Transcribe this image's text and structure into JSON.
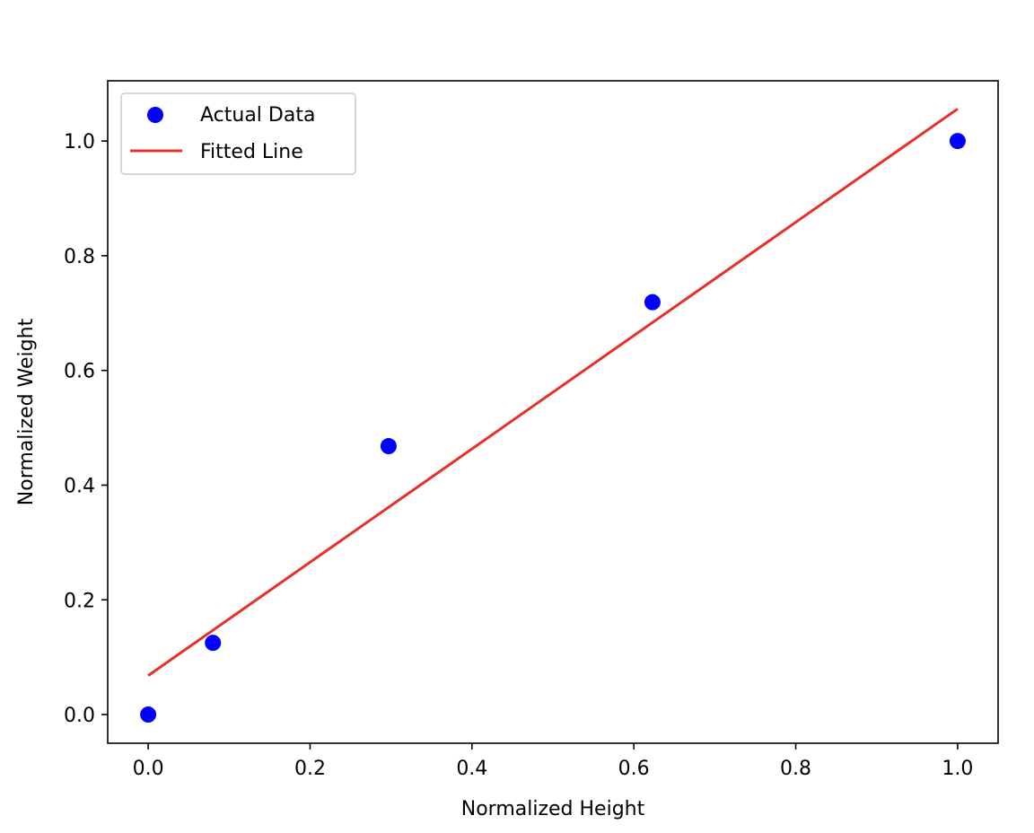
{
  "chart_data": {
    "type": "scatter",
    "xlabel": "Normalized Height",
    "ylabel": "Normalized Weight",
    "xlim": [
      -0.05,
      1.05
    ],
    "ylim": [
      -0.05,
      1.105
    ],
    "xticks": [
      0.0,
      0.2,
      0.4,
      0.6,
      0.8,
      1.0
    ],
    "xtick_labels": [
      "0.0",
      "0.2",
      "0.4",
      "0.6",
      "0.8",
      "1.0"
    ],
    "yticks": [
      0.0,
      0.2,
      0.4,
      0.6,
      0.8,
      1.0
    ],
    "ytick_labels": [
      "0.0",
      "0.2",
      "0.4",
      "0.6",
      "0.8",
      "1.0"
    ],
    "grid": false,
    "legend_position": "top-left",
    "series": [
      {
        "name": "Actual Data",
        "kind": "scatter",
        "color": "#0000ff",
        "points": [
          {
            "x": 0.0,
            "y": 0.0
          },
          {
            "x": 0.08,
            "y": 0.125
          },
          {
            "x": 0.297,
            "y": 0.468
          },
          {
            "x": 0.623,
            "y": 0.719
          },
          {
            "x": 1.0,
            "y": 1.0
          }
        ]
      },
      {
        "name": "Fitted Line",
        "kind": "line",
        "color": "#e8302a",
        "points": [
          {
            "x": 0.0,
            "y": 0.068
          },
          {
            "x": 1.0,
            "y": 1.056
          }
        ]
      }
    ]
  }
}
